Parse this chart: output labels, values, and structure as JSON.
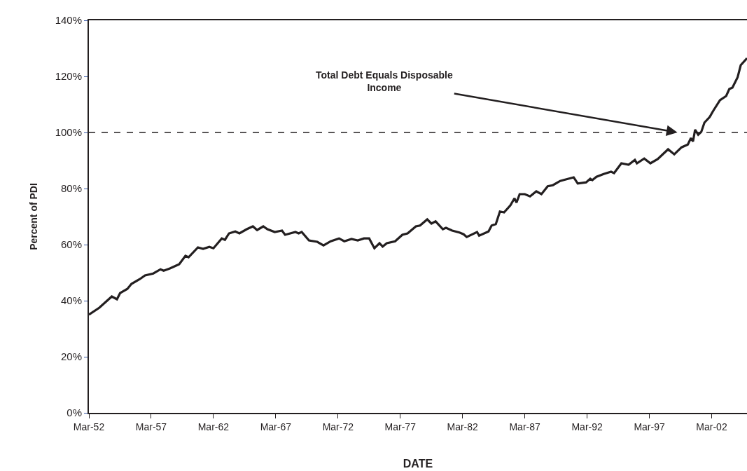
{
  "chart_data": {
    "type": "line",
    "xlabel": "DATE",
    "ylabel": "Percent of PDI",
    "x": [
      "1952-03",
      "1953-01",
      "1954-01",
      "1954-06",
      "1954-09",
      "1955-04",
      "1955-08",
      "1956-04",
      "1956-09",
      "1957-05",
      "1957-12",
      "1958-03",
      "1958-09",
      "1959-03",
      "1959-06",
      "1959-12",
      "1960-03",
      "1960-12",
      "1961-05",
      "1961-11",
      "1962-03",
      "1962-11",
      "1963-02",
      "1963-06",
      "1963-12",
      "1964-04",
      "1964-11",
      "1965-05",
      "1965-09",
      "1966-03",
      "1966-07",
      "1967-02",
      "1967-09",
      "1967-12",
      "1968-10",
      "1969-01",
      "1969-04",
      "1969-11",
      "1970-07",
      "1971-01",
      "1971-08",
      "1972-04",
      "1972-09",
      "1973-04",
      "1973-10",
      "1974-04",
      "1974-09",
      "1975-02",
      "1975-07",
      "1975-10",
      "1976-02",
      "1976-10",
      "1977-05",
      "1977-10",
      "1978-06",
      "1978-10",
      "1979-05",
      "1979-09",
      "1980-01",
      "1980-08",
      "1980-11",
      "1981-05",
      "1981-12",
      "1982-04",
      "1982-07",
      "1983-05",
      "1983-07",
      "1984-04",
      "1984-07",
      "1984-11",
      "1985-03",
      "1985-07",
      "1986-01",
      "1986-05",
      "1986-07",
      "1986-10",
      "1987-03",
      "1987-08",
      "1988-02",
      "1988-07",
      "1989-01",
      "1989-06",
      "1990-01",
      "1990-04",
      "1991-02",
      "1991-06",
      "1992-02",
      "1992-06",
      "1992-08",
      "1992-12",
      "1993-07",
      "1994-02",
      "1994-05",
      "1994-12",
      "1995-07",
      "1996-01",
      "1996-03",
      "1996-10",
      "1997-04",
      "1997-11",
      "1998-09",
      "1999-03",
      "1999-10",
      "2000-04",
      "2000-07",
      "2000-09",
      "2000-11",
      "2001-02",
      "2001-05",
      "2001-08",
      "2002-01",
      "2002-05",
      "2002-11",
      "2003-05",
      "2003-08",
      "2003-11",
      "2004-04",
      "2004-07",
      "2005-01"
    ],
    "series": [
      {
        "color": "#231f20",
        "values": [
          35,
          37.5,
          41.5,
          40.5,
          42.7,
          44.2,
          46,
          47.7,
          49,
          49.7,
          51.2,
          50.7,
          51.5,
          52.5,
          53,
          56,
          55.5,
          59,
          58.5,
          59.2,
          58.7,
          62.2,
          61.7,
          64,
          64.7,
          64,
          65.5,
          66.5,
          65.2,
          66.5,
          65.5,
          64.5,
          65,
          63.5,
          64.5,
          64,
          64.5,
          61.5,
          61,
          59.7,
          61.2,
          62.2,
          61.2,
          62,
          61.5,
          62.2,
          62.2,
          58.7,
          60.5,
          59.3,
          60.5,
          61.2,
          63.5,
          64,
          66.5,
          66.8,
          69,
          67.5,
          68.3,
          65.5,
          66,
          65,
          64.3,
          63.7,
          62.7,
          64.5,
          63.2,
          64.7,
          66.8,
          67.3,
          71.8,
          71.5,
          74,
          76.5,
          75,
          78,
          78,
          77.2,
          79,
          78,
          80.8,
          81.2,
          82.7,
          83,
          84,
          81.8,
          82.2,
          83.5,
          83,
          84.2,
          85.2,
          86,
          85.5,
          89,
          88.5,
          90.2,
          89,
          90.7,
          89,
          90.5,
          94,
          92.2,
          94.7,
          95.7,
          98,
          96.8,
          101,
          99.2,
          100.2,
          103.5,
          105.5,
          108,
          111.5,
          113,
          115.5,
          116,
          119.7,
          124,
          126.5
        ]
      }
    ],
    "xlim": [
      "1952-03",
      "2005-01"
    ],
    "xticks": [
      {
        "value": "1952-03",
        "label": "Mar-52"
      },
      {
        "value": "1957-03",
        "label": "Mar-57"
      },
      {
        "value": "1962-03",
        "label": "Mar-62"
      },
      {
        "value": "1967-03",
        "label": "Mar-67"
      },
      {
        "value": "1972-03",
        "label": "Mar-72"
      },
      {
        "value": "1977-03",
        "label": "Mar-77"
      },
      {
        "value": "1982-03",
        "label": "Mar-82"
      },
      {
        "value": "1987-03",
        "label": "Mar-87"
      },
      {
        "value": "1992-03",
        "label": "Mar-92"
      },
      {
        "value": "1997-03",
        "label": "Mar-97"
      },
      {
        "value": "2002-03",
        "label": "Mar-02"
      }
    ],
    "ylim": [
      0,
      140
    ],
    "yticks": [
      {
        "value": 0,
        "label": "0%"
      },
      {
        "value": 20,
        "label": "20%"
      },
      {
        "value": 40,
        "label": "40%"
      },
      {
        "value": 60,
        "label": "60%"
      },
      {
        "value": 80,
        "label": "80%"
      },
      {
        "value": 100,
        "label": "100%"
      },
      {
        "value": 120,
        "label": "120%"
      },
      {
        "value": 140,
        "label": "140%"
      }
    ],
    "ref_lines": [
      {
        "axis": "y",
        "value": 100,
        "color": "#231f20",
        "line_style": "dashed"
      }
    ],
    "annotations": [
      {
        "text": "Total Debt Equals Disposable Income",
        "x": "1999-06",
        "y": 100
      }
    ],
    "marker": "none",
    "line_style": "solid"
  }
}
